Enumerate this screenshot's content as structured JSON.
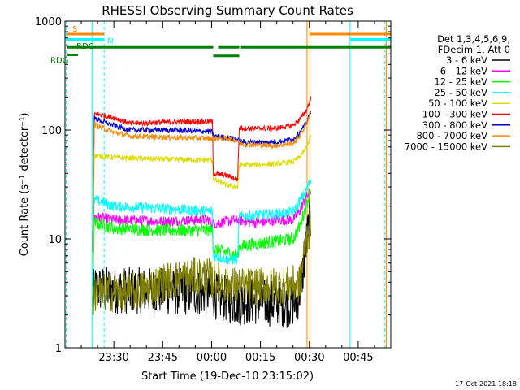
{
  "chart_data": {
    "type": "line",
    "title": "RHESSI Observing Summary Count Rates",
    "xlabel": "Start Time (19-Dec-10 23:15:02)",
    "ylabel": "Count Rate (s⁻¹ detector⁻¹)",
    "yscale": "log",
    "ylim": [
      1,
      1000
    ],
    "xlim_minutes": [
      0,
      100
    ],
    "y_ticks": [
      "1",
      "10",
      "100",
      "1000"
    ],
    "x_ticks": [
      {
        "label": "23:30",
        "minute": 15
      },
      {
        "label": "23:45",
        "minute": 30
      },
      {
        "label": "00:00",
        "minute": 45
      },
      {
        "label": "00:15",
        "minute": 60
      },
      {
        "label": "00:30",
        "minute": 75
      },
      {
        "label": "00:45",
        "minute": 90
      }
    ],
    "legend_header": [
      "Det 1,3,4,5,6,9,",
      "FDecim 1, Att 0"
    ],
    "series": [
      {
        "name": "3 - 6 keV",
        "color": "#000000",
        "points": [
          [
            8.5,
            2.5
          ],
          [
            9,
            3.5
          ],
          [
            15,
            3.4
          ],
          [
            30,
            3.3
          ],
          [
            44,
            3.2
          ],
          [
            45.5,
            3.1
          ],
          [
            47,
            2.9
          ],
          [
            50,
            2.8
          ],
          [
            53,
            2.6
          ],
          [
            56,
            2.7
          ],
          [
            62,
            2.6
          ],
          [
            68,
            2.5
          ],
          [
            71,
            2.6
          ],
          [
            72,
            3.3
          ],
          [
            73,
            5
          ],
          [
            74,
            9
          ],
          [
            75,
            14
          ],
          [
            75.5,
            15
          ]
        ]
      },
      {
        "name": "6 - 12 keV",
        "color": "#ff00ff",
        "points": [
          [
            8.5,
            4
          ],
          [
            9,
            16
          ],
          [
            15,
            15
          ],
          [
            30,
            14.5
          ],
          [
            44,
            15
          ],
          [
            45,
            14
          ],
          [
            47,
            14
          ],
          [
            50,
            14.5
          ],
          [
            53,
            15
          ],
          [
            55,
            14.5
          ],
          [
            60,
            14
          ],
          [
            65,
            15
          ],
          [
            70,
            15
          ],
          [
            72,
            18
          ],
          [
            74,
            24
          ],
          [
            75.5,
            28
          ]
        ]
      },
      {
        "name": "12 - 25 keV",
        "color": "#00ff00",
        "points": [
          [
            8.5,
            3
          ],
          [
            9,
            14
          ],
          [
            15,
            12.5
          ],
          [
            30,
            12
          ],
          [
            44,
            12
          ],
          [
            45.3,
            12
          ],
          [
            45.5,
            8
          ],
          [
            50,
            7.5
          ],
          [
            53,
            7
          ],
          [
            53.5,
            8.5
          ],
          [
            58,
            9
          ],
          [
            65,
            9.5
          ],
          [
            70,
            10
          ],
          [
            72,
            13
          ],
          [
            74,
            20
          ],
          [
            75.5,
            30
          ]
        ]
      },
      {
        "name": "25 - 50 keV",
        "color": "#00ffff",
        "points": [
          [
            8.5,
            4
          ],
          [
            9,
            23
          ],
          [
            15,
            20
          ],
          [
            30,
            19
          ],
          [
            44,
            18
          ],
          [
            45.3,
            18
          ],
          [
            45.5,
            7
          ],
          [
            50,
            6.5
          ],
          [
            53,
            6.5
          ],
          [
            53.5,
            16
          ],
          [
            58,
            16.5
          ],
          [
            65,
            17
          ],
          [
            70,
            17.5
          ],
          [
            72,
            22
          ],
          [
            74,
            28
          ],
          [
            75.5,
            35
          ]
        ]
      },
      {
        "name": "50 - 100 keV",
        "color": "#dddd00",
        "points": [
          [
            8.5,
            6
          ],
          [
            9,
            58
          ],
          [
            15,
            56
          ],
          [
            30,
            54
          ],
          [
            44,
            53
          ],
          [
            45.3,
            53
          ],
          [
            45.5,
            35
          ],
          [
            50,
            31
          ],
          [
            53,
            30
          ],
          [
            53.5,
            48
          ],
          [
            58,
            48
          ],
          [
            65,
            49
          ],
          [
            70,
            51
          ],
          [
            72,
            56
          ],
          [
            74,
            68
          ],
          [
            75.5,
            90
          ]
        ]
      },
      {
        "name": "100 - 300 keV",
        "color": "#ff0000",
        "points": [
          [
            8.5,
            8
          ],
          [
            9,
            142
          ],
          [
            15,
            130
          ],
          [
            20,
            115
          ],
          [
            30,
            118
          ],
          [
            44,
            120
          ],
          [
            45.3,
            118
          ],
          [
            45.5,
            40
          ],
          [
            50,
            38
          ],
          [
            53,
            35
          ],
          [
            53.5,
            105
          ],
          [
            58,
            103
          ],
          [
            65,
            104
          ],
          [
            70,
            110
          ],
          [
            72,
            125
          ],
          [
            74,
            150
          ],
          [
            75.5,
            195
          ]
        ]
      },
      {
        "name": "300 - 800 keV",
        "color": "#0000cc",
        "points": [
          [
            8.5,
            8
          ],
          [
            9,
            128
          ],
          [
            15,
            110
          ],
          [
            20,
            100
          ],
          [
            30,
            100
          ],
          [
            44,
            97
          ],
          [
            45.3,
            95
          ],
          [
            45.5,
            88
          ],
          [
            50,
            85
          ],
          [
            53,
            82
          ],
          [
            53.5,
            78
          ],
          [
            58,
            77
          ],
          [
            65,
            78
          ],
          [
            70,
            82
          ],
          [
            72,
            95
          ],
          [
            74,
            115
          ],
          [
            75.5,
            150
          ]
        ]
      },
      {
        "name": "800 - 7000 keV",
        "color": "#ff8800",
        "points": [
          [
            8.5,
            8
          ],
          [
            9,
            112
          ],
          [
            15,
            95
          ],
          [
            20,
            88
          ],
          [
            30,
            86
          ],
          [
            44,
            84
          ],
          [
            46,
            84
          ],
          [
            50,
            84
          ],
          [
            53,
            80
          ],
          [
            53.5,
            75
          ],
          [
            58,
            73
          ],
          [
            65,
            72
          ],
          [
            70,
            75
          ],
          [
            72,
            88
          ],
          [
            74,
            112
          ],
          [
            75.5,
            150
          ]
        ]
      },
      {
        "name": "7000 - 15000 keV",
        "color": "#808000",
        "points": [
          [
            8.5,
            2.5
          ],
          [
            9,
            3.2
          ],
          [
            20,
            3.2
          ],
          [
            25,
            3.5
          ],
          [
            30,
            4
          ],
          [
            35,
            4.3
          ],
          [
            40,
            4.5
          ],
          [
            44,
            4.5
          ],
          [
            45.5,
            4.1
          ],
          [
            50,
            3.8
          ],
          [
            55,
            3.6
          ],
          [
            60,
            3.7
          ],
          [
            65,
            3.7
          ],
          [
            70,
            3.8
          ],
          [
            72,
            3.8
          ],
          [
            73,
            6
          ],
          [
            74,
            10
          ],
          [
            75.5,
            14
          ]
        ]
      }
    ],
    "flags": [
      {
        "label": "S",
        "color": "#ff8800",
        "segments": [
          [
            0.5,
            12
          ]
        ],
        "level": 760
      },
      {
        "label": "N",
        "color": "#00ffff",
        "segments": [
          [
            0.5,
            12
          ]
        ],
        "level": 680
      },
      {
        "label": "RDC",
        "color": "#008000",
        "segments": [
          [
            0.5,
            45.5
          ],
          [
            47,
            53.5
          ],
          [
            54,
            100
          ]
        ],
        "level": 575
      },
      {
        "label": "RDG",
        "color": "#008000",
        "segments": [
          [
            0.5,
            4
          ]
        ],
        "level": 490
      }
    ],
    "flag_overlays": [
      {
        "color": "#ff8800",
        "segments": [
          [
            75,
            100
          ]
        ],
        "level": 760
      },
      {
        "color": "#00ffff",
        "segments": [
          [
            87.5,
            100
          ]
        ],
        "level": 680
      },
      {
        "color": "#008000",
        "segments": [
          [
            45.5,
            53.5
          ]
        ],
        "level": 480
      }
    ],
    "vlines": [
      {
        "minute": 0.4,
        "color": "#00ffff",
        "dashed": true
      },
      {
        "minute": 8.3,
        "color": "#00ffff",
        "dashed": false
      },
      {
        "minute": 12,
        "color": "#00ffff",
        "dashed": true
      },
      {
        "minute": 74.3,
        "color": "#ff8800",
        "dashed": false
      },
      {
        "minute": 75.2,
        "color": "#ff8800",
        "dashed": false
      },
      {
        "minute": 87.5,
        "color": "#00ffff",
        "dashed": false
      },
      {
        "minute": 98.2,
        "color": "#00ffff",
        "dashed": true
      },
      {
        "minute": 98.6,
        "color": "#ff8800",
        "dashed": false
      }
    ]
  },
  "timestamp": "17-Oct-2021 18:18"
}
